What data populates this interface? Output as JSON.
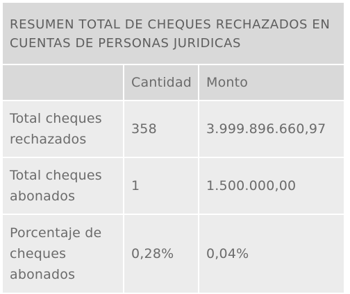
{
  "title": "RESUMEN TOTAL DE CHEQUES RECHAZADOS EN CUENTAS DE PERSONAS JURIDICAS",
  "columns": [
    "",
    "Cantidad",
    "Monto"
  ],
  "rows": [
    {
      "label": "Total cheques rechazados",
      "cantidad": "358",
      "monto": "3.999.896.660,97"
    },
    {
      "label": "Total cheques abonados",
      "cantidad": "1",
      "monto": "1.500.000,00"
    },
    {
      "label": "Porcentaje de cheques abonados",
      "cantidad": "0,28%",
      "monto": "0,04%"
    }
  ],
  "colors": {
    "header_bg": "#d9d9d9",
    "body_bg": "#ececec",
    "text": "#6b6b6b"
  }
}
